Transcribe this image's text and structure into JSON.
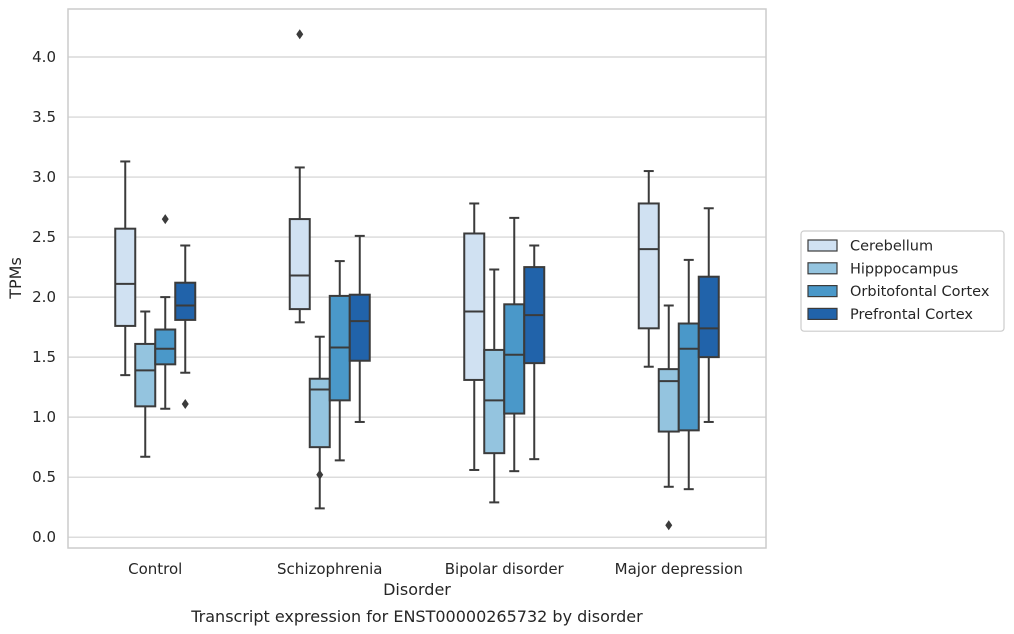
{
  "chart_data": {
    "type": "boxplot",
    "caption": "Transcript expression for ENST00000265732 by disorder",
    "xlabel": "Disorder",
    "ylabel": "TPMs",
    "ylim": [
      -0.09,
      4.4
    ],
    "yticks": [
      0.0,
      0.5,
      1.0,
      1.5,
      2.0,
      2.5,
      3.0,
      3.5,
      4.0
    ],
    "ytick_labels": [
      "0.0",
      "0.5",
      "1.0",
      "1.5",
      "2.0",
      "2.5",
      "3.0",
      "3.5",
      "4.0"
    ],
    "categories": [
      "Control",
      "Schizophrenia",
      "Bipolar disorder",
      "Major depression"
    ],
    "grid": "horizontal",
    "legend_position": "right",
    "series": [
      {
        "name": "Cerebellum",
        "color": "#d0e1f2",
        "boxes": [
          {
            "whislo": 1.35,
            "q1": 1.76,
            "med": 2.11,
            "q3": 2.57,
            "whishi": 3.13,
            "fliers": []
          },
          {
            "whislo": 1.79,
            "q1": 1.9,
            "med": 2.18,
            "q3": 2.65,
            "whishi": 3.08,
            "fliers": [
              4.19
            ]
          },
          {
            "whislo": 0.56,
            "q1": 1.31,
            "med": 1.88,
            "q3": 2.53,
            "whishi": 2.78,
            "fliers": []
          },
          {
            "whislo": 1.42,
            "q1": 1.74,
            "med": 2.4,
            "q3": 2.78,
            "whishi": 3.05,
            "fliers": []
          }
        ]
      },
      {
        "name": "Hipppocampus",
        "color": "#94c4df",
        "boxes": [
          {
            "whislo": 0.67,
            "q1": 1.09,
            "med": 1.39,
            "q3": 1.61,
            "whishi": 1.88,
            "fliers": []
          },
          {
            "whislo": 0.24,
            "q1": 0.75,
            "med": 1.23,
            "q3": 1.32,
            "whishi": 1.67,
            "fliers": [
              0.52
            ]
          },
          {
            "whislo": 0.29,
            "q1": 0.7,
            "med": 1.14,
            "q3": 1.56,
            "whishi": 2.23,
            "fliers": []
          },
          {
            "whislo": 0.42,
            "q1": 0.88,
            "med": 1.3,
            "q3": 1.4,
            "whishi": 1.93,
            "fliers": [
              0.1
            ]
          }
        ]
      },
      {
        "name": "Orbitofontal Cortex",
        "color": "#4a98c9",
        "boxes": [
          {
            "whislo": 1.07,
            "q1": 1.44,
            "med": 1.57,
            "q3": 1.73,
            "whishi": 2.0,
            "fliers": [
              2.65
            ]
          },
          {
            "whislo": 0.64,
            "q1": 1.14,
            "med": 1.58,
            "q3": 2.01,
            "whishi": 2.3,
            "fliers": []
          },
          {
            "whislo": 0.55,
            "q1": 1.03,
            "med": 1.52,
            "q3": 1.94,
            "whishi": 2.66,
            "fliers": []
          },
          {
            "whislo": 0.4,
            "q1": 0.89,
            "med": 1.57,
            "q3": 1.78,
            "whishi": 2.31,
            "fliers": []
          }
        ]
      },
      {
        "name": "Prefrontal Cortex",
        "color": "#2163aa",
        "boxes": [
          {
            "whislo": 1.37,
            "q1": 1.81,
            "med": 1.93,
            "q3": 2.12,
            "whishi": 2.43,
            "fliers": [
              1.11
            ]
          },
          {
            "whislo": 0.96,
            "q1": 1.47,
            "med": 1.8,
            "q3": 2.02,
            "whishi": 2.51,
            "fliers": []
          },
          {
            "whislo": 0.65,
            "q1": 1.45,
            "med": 1.85,
            "q3": 2.25,
            "whishi": 2.43,
            "fliers": []
          },
          {
            "whislo": 0.96,
            "q1": 1.5,
            "med": 1.74,
            "q3": 2.17,
            "whishi": 2.74,
            "fliers": []
          }
        ]
      }
    ]
  }
}
